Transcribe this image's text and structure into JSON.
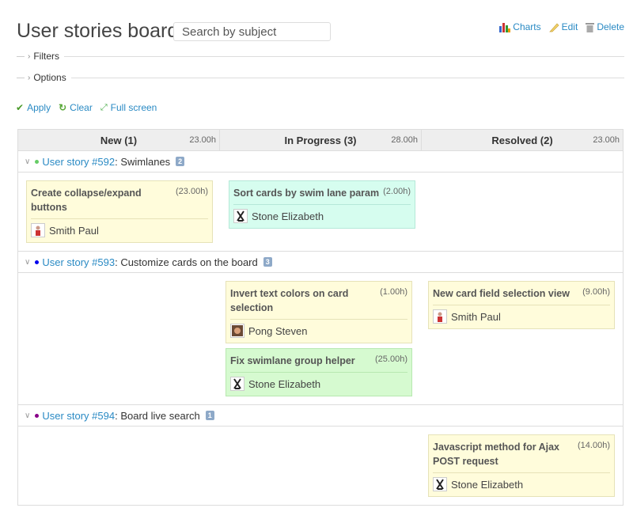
{
  "header": {
    "title": "User stories board",
    "search_placeholder": "Search by subject",
    "actions": [
      {
        "label": "Charts",
        "icon": "chart-icon"
      },
      {
        "label": "Edit",
        "icon": "pencil-icon"
      },
      {
        "label": "Delete",
        "icon": "trash-icon"
      }
    ]
  },
  "filters_label": "Filters",
  "options_label": "Options",
  "toolbar": {
    "apply": "Apply",
    "clear": "Clear",
    "fullscreen": "Full screen"
  },
  "columns": [
    {
      "name": "New (1)",
      "hours": "23.00h"
    },
    {
      "name": "In Progress (3)",
      "hours": "28.00h"
    },
    {
      "name": "Resolved (2)",
      "hours": "23.00h"
    }
  ],
  "colors": {
    "yellow": "#fffcdb",
    "cyan": "#d6fdef",
    "green": "#d6fad0",
    "link": "#2a8ac4"
  },
  "lanes": [
    {
      "link": "User story #592",
      "subject": ": Swimlanes",
      "count": "2",
      "dot": "#66cc66",
      "cols": [
        [
          {
            "subject": "Create collapse/expand buttons",
            "est": "(23.00h)",
            "user": "Smith Paul",
            "avatar": "person",
            "color": "#fffcdb",
            "border": "#e6e2b8"
          }
        ],
        [
          {
            "subject": "Sort cards by swim lane param",
            "est": "(2.00h)",
            "user": "Stone Elizabeth",
            "avatar": "figure",
            "color": "#d6fdef",
            "border": "#b5e8d8"
          }
        ],
        []
      ]
    },
    {
      "link": "User story #593",
      "subject": ": Customize cards on the board",
      "count": "3",
      "dot": "#0000ee",
      "cols": [
        [],
        [
          {
            "subject": "Invert text colors on card selection",
            "est": "(1.00h)",
            "user": "Pong Steven",
            "avatar": "photo",
            "color": "#fffcdb",
            "border": "#e6e2b8"
          },
          {
            "subject": "Fix swimlane group helper",
            "est": "(25.00h)",
            "user": "Stone Elizabeth",
            "avatar": "figure",
            "color": "#d6fad0",
            "border": "#b8e8b0"
          }
        ],
        [
          {
            "subject": "New card field selection view",
            "est": "(9.00h)",
            "user": "Smith Paul",
            "avatar": "person",
            "color": "#fffcdb",
            "border": "#e6e2b8"
          }
        ]
      ]
    },
    {
      "link": "User story #594",
      "subject": ": Board live search",
      "count": "1",
      "dot": "#880088",
      "cols": [
        [],
        [],
        [
          {
            "subject": "Javascript method for Ajax POST request",
            "est": "(14.00h)",
            "user": "Stone Elizabeth",
            "avatar": "figure",
            "color": "#fffcdb",
            "border": "#e6e2b8"
          }
        ]
      ]
    }
  ]
}
